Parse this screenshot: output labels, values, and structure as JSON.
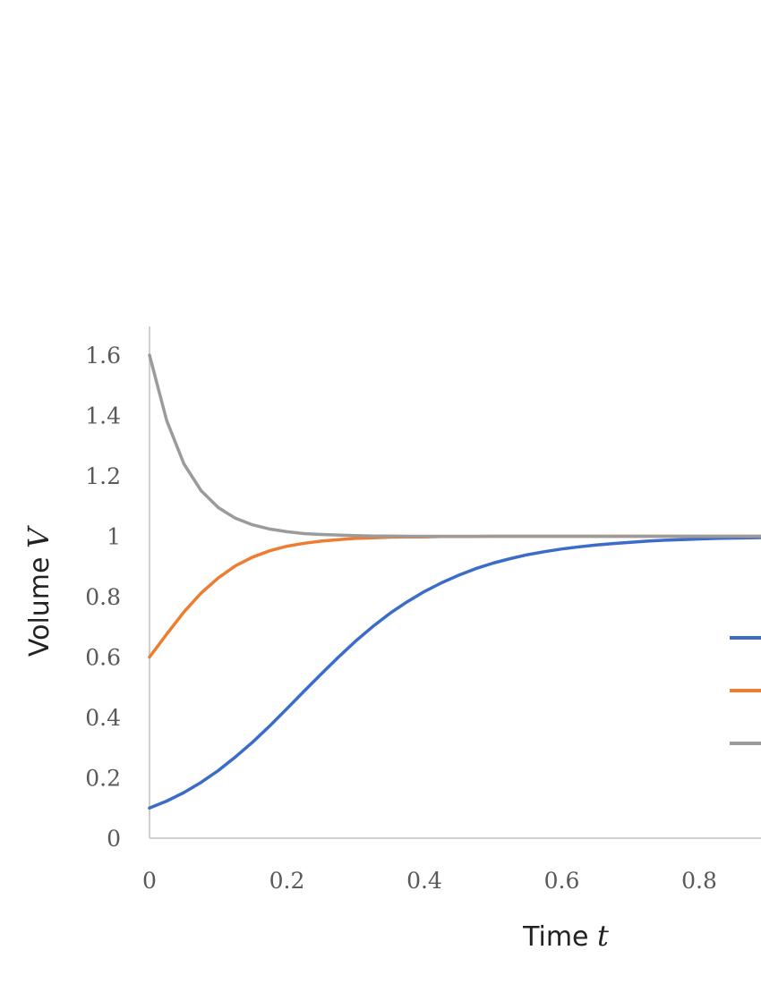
{
  "chart_data": {
    "type": "line",
    "xlabel": {
      "text": "Time ",
      "variable": "t"
    },
    "ylabel": {
      "text": "Volume ",
      "variable": "V"
    },
    "xlim": [
      0,
      0.9
    ],
    "ylim": [
      0,
      1.7
    ],
    "xticks": [
      "0",
      "0.2",
      "0.4",
      "0.6",
      "0.8"
    ],
    "yticks": [
      "0",
      "0.2",
      "0.4",
      "0.6",
      "0.8",
      "1",
      "1.2",
      "1.4",
      "1.6"
    ],
    "grid": false,
    "legend": {
      "position": "right",
      "names_visible": false
    },
    "x": [
      0,
      0.025,
      0.05,
      0.075,
      0.1,
      0.125,
      0.15,
      0.175,
      0.2,
      0.225,
      0.25,
      0.275,
      0.3,
      0.325,
      0.35,
      0.375,
      0.4,
      0.425,
      0.45,
      0.475,
      0.5,
      0.525,
      0.55,
      0.575,
      0.6,
      0.625,
      0.65,
      0.675,
      0.7,
      0.725,
      0.75,
      0.775,
      0.8,
      0.825,
      0.85,
      0.875,
      0.9
    ],
    "series": [
      {
        "color": "#3b6cc9",
        "values": [
          0.1,
          0.123,
          0.151,
          0.185,
          0.224,
          0.269,
          0.318,
          0.372,
          0.429,
          0.487,
          0.544,
          0.6,
          0.653,
          0.701,
          0.745,
          0.783,
          0.817,
          0.846,
          0.871,
          0.893,
          0.911,
          0.926,
          0.939,
          0.949,
          0.958,
          0.965,
          0.971,
          0.976,
          0.98,
          0.984,
          0.987,
          0.989,
          0.991,
          0.993,
          0.994,
          0.995,
          0.996
        ]
      },
      {
        "color": "#ed7d31",
        "values": [
          0.6,
          0.676,
          0.749,
          0.812,
          0.862,
          0.902,
          0.931,
          0.952,
          0.967,
          0.977,
          0.984,
          0.989,
          0.993,
          0.995,
          0.997,
          0.998,
          0.998,
          0.999,
          0.999,
          0.999,
          1.0,
          1.0,
          1.0,
          1.0,
          1.0,
          1.0,
          1.0,
          1.0,
          1.0,
          1.0,
          1.0,
          1.0,
          1.0,
          1.0,
          1.0,
          1.0,
          1.0
        ]
      },
      {
        "color": "#9b9b9b",
        "values": [
          1.6,
          1.383,
          1.24,
          1.151,
          1.095,
          1.06,
          1.038,
          1.024,
          1.015,
          1.009,
          1.006,
          1.004,
          1.002,
          1.001,
          1.001,
          1.0,
          1.0,
          1.0,
          1.0,
          1.0,
          1.0,
          1.0,
          1.0,
          1.0,
          1.0,
          1.0,
          1.0,
          1.0,
          1.0,
          1.0,
          1.0,
          1.0,
          1.0,
          1.0,
          1.0,
          1.0,
          1.0
        ]
      }
    ]
  }
}
